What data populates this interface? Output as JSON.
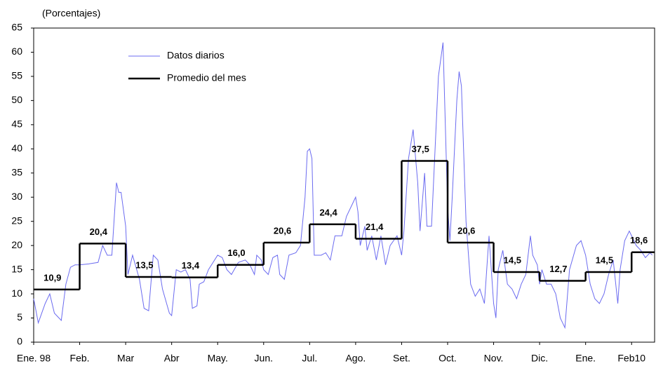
{
  "chart_data": {
    "type": "line",
    "y_label": "(Porcentajes)",
    "xlim": [
      0,
      13.5
    ],
    "xticks": [
      {
        "value": 0,
        "label": "Ene. 98"
      },
      {
        "value": 1,
        "label": "Feb."
      },
      {
        "value": 2,
        "label": "Mar"
      },
      {
        "value": 3,
        "label": "Abr"
      },
      {
        "value": 4,
        "label": "May."
      },
      {
        "value": 5,
        "label": "Jun."
      },
      {
        "value": 6,
        "label": "Jul."
      },
      {
        "value": 7,
        "label": "Ago."
      },
      {
        "value": 8,
        "label": "Set."
      },
      {
        "value": 9,
        "label": "Oct."
      },
      {
        "value": 10,
        "label": "Nov."
      },
      {
        "value": 11,
        "label": "Dic."
      },
      {
        "value": 12,
        "label": "Ene."
      },
      {
        "value": 13,
        "label": "Feb10"
      }
    ],
    "ylim": [
      0,
      65
    ],
    "yticks": [
      0,
      5,
      10,
      15,
      20,
      25,
      30,
      35,
      40,
      45,
      50,
      55,
      60,
      65
    ],
    "legend": "upper-left",
    "series": [
      {
        "name": "Datos diarios",
        "color": "#6b6bf0",
        "style": "line",
        "x": [
          0,
          0.1,
          0.25,
          0.35,
          0.45,
          0.6,
          0.7,
          0.8,
          0.9,
          1.0,
          1.2,
          1.4,
          1.5,
          1.6,
          1.7,
          1.8,
          1.85,
          1.9,
          2.0,
          2.05,
          2.15,
          2.3,
          2.4,
          2.5,
          2.6,
          2.7,
          2.8,
          2.95,
          3.0,
          3.1,
          3.2,
          3.3,
          3.4,
          3.45,
          3.55,
          3.6,
          3.7,
          3.8,
          3.9,
          4.0,
          4.1,
          4.2,
          4.3,
          4.45,
          4.6,
          4.7,
          4.8,
          4.85,
          4.95,
          5.0,
          5.1,
          5.2,
          5.3,
          5.35,
          5.45,
          5.55,
          5.7,
          5.8,
          5.9,
          5.95,
          6.0,
          6.05,
          6.1,
          6.25,
          6.35,
          6.45,
          6.55,
          6.7,
          6.8,
          6.9,
          7.0,
          7.05,
          7.1,
          7.2,
          7.25,
          7.35,
          7.45,
          7.55,
          7.65,
          7.75,
          7.9,
          8.0,
          8.05,
          8.15,
          8.25,
          8.35,
          8.4,
          8.5,
          8.55,
          8.65,
          8.8,
          8.9,
          9.0,
          9.05,
          9.1,
          9.2,
          9.25,
          9.3,
          9.4,
          9.5,
          9.6,
          9.7,
          9.8,
          9.9,
          10.0,
          10.05,
          10.1,
          10.2,
          10.3,
          10.4,
          10.5,
          10.6,
          10.7,
          10.8,
          10.85,
          10.95,
          11.0,
          11.05,
          11.15,
          11.25,
          11.35,
          11.45,
          11.5,
          11.55,
          11.65,
          11.8,
          11.9,
          12.0,
          12.1,
          12.2,
          12.3,
          12.4,
          12.5,
          12.6,
          12.7,
          12.75,
          12.85,
          12.95,
          13.0,
          13.1,
          13.2,
          13.3,
          13.4,
          13.45
        ],
        "values": [
          9,
          4,
          8,
          10,
          6,
          4.5,
          12,
          15.5,
          16,
          16,
          16.2,
          16.5,
          20,
          18,
          18,
          33,
          31,
          31,
          24,
          14,
          18,
          13,
          7,
          6.5,
          18,
          17,
          11,
          6,
          5.5,
          15,
          14.5,
          15,
          13,
          7,
          7.5,
          12,
          12.5,
          15,
          16.5,
          18,
          17.5,
          15,
          14,
          16.5,
          17,
          16,
          14,
          18,
          17,
          15,
          14,
          17.5,
          18,
          14,
          13,
          18,
          18.5,
          20,
          30,
          39.5,
          40,
          38,
          18,
          18,
          18.5,
          17,
          22,
          22,
          26,
          28,
          30,
          27,
          20,
          24,
          19,
          22,
          17,
          22,
          16,
          20,
          22,
          18,
          23,
          38,
          44,
          33,
          23,
          35,
          24,
          24,
          55,
          62,
          28,
          21,
          30,
          50,
          56,
          53,
          25,
          12,
          9.5,
          11,
          8,
          22,
          8,
          5,
          15,
          19,
          12,
          11,
          9,
          12,
          14,
          22,
          18,
          16,
          12,
          15,
          12,
          12,
          10,
          5,
          4,
          3,
          15,
          20,
          21,
          18,
          12,
          9,
          8,
          10,
          14,
          17,
          8,
          15,
          21,
          23,
          22,
          20,
          19,
          17.5,
          18.5,
          18
        ]
      },
      {
        "name": "Promedio del mes",
        "color": "#000000",
        "style": "step",
        "x": [
          0,
          1,
          2,
          3,
          4,
          5,
          6,
          7,
          8,
          9,
          10,
          11,
          12,
          13
        ],
        "values": [
          10.9,
          20.4,
          13.5,
          13.4,
          16.0,
          20.6,
          24.4,
          21.4,
          37.5,
          20.6,
          14.5,
          12.7,
          14.5,
          18.6
        ],
        "value_labels": [
          "10,9",
          "20,4",
          "13,5",
          "13,4",
          "16,0",
          "20,6",
          "24,4",
          "21,4",
          "37,5",
          "20,6",
          "14,5",
          "12,7",
          "14,5",
          "18,6"
        ]
      }
    ]
  }
}
